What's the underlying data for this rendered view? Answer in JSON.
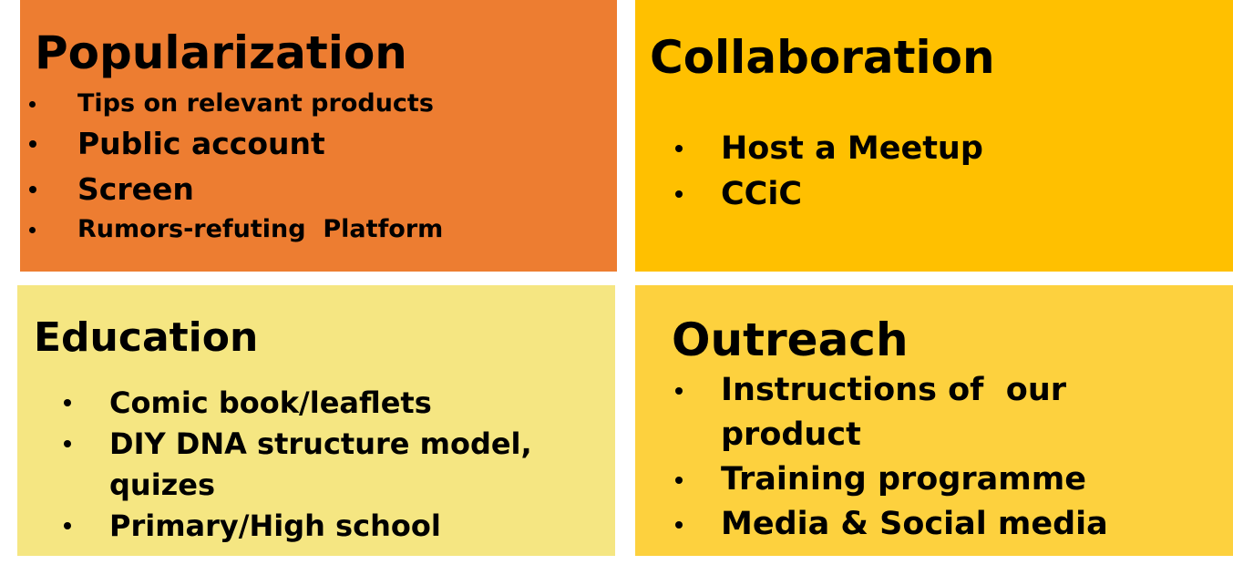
{
  "colors": {
    "popularization_bg": "#ED7D31",
    "collaboration_bg": "#FFC000",
    "education_bg": "#F5E682",
    "outreach_bg": "#FDD13E"
  },
  "popularization": {
    "title": "Popularization",
    "items": [
      "Tips on relevant products",
      "Public account",
      "Screen",
      "Rumors-refuting  Platform"
    ]
  },
  "collaboration": {
    "title": "Collaboration",
    "items": [
      "Host a Meetup",
      "CCiC"
    ]
  },
  "education": {
    "title": "Education",
    "items": [
      "Comic book/leaflets",
      "DIY DNA structure model,\nquizes",
      "Primary/High school"
    ]
  },
  "outreach": {
    "title": "Outreach",
    "items": [
      "Instructions of  our\nproduct",
      "Training programme",
      "Media & Social media"
    ]
  }
}
